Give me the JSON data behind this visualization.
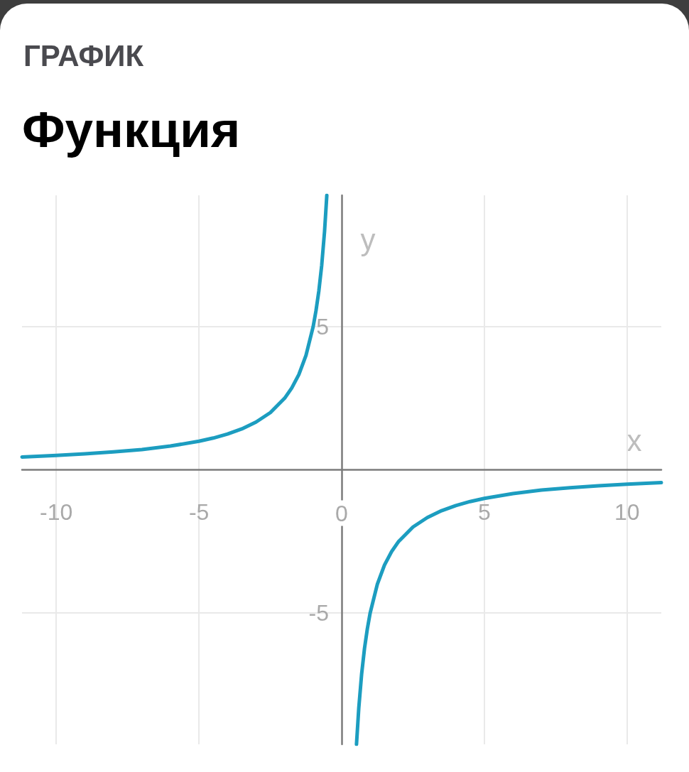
{
  "chart_data": {
    "type": "line",
    "subtitle": "ГРАФИК",
    "title": "Функция",
    "xlabel": "x",
    "ylabel": "y",
    "x": [
      -11.2,
      -10,
      -9,
      -8,
      -7,
      -6,
      -5,
      -4.5,
      -4,
      -3.5,
      -3,
      -2.5,
      -2,
      -1.75,
      -1.5,
      -1.25,
      -1,
      -0.9,
      -0.8,
      -0.7,
      -0.6,
      -0.52,
      null,
      0.52,
      0.6,
      0.7,
      0.8,
      0.9,
      1,
      1.25,
      1.5,
      1.75,
      2,
      2.5,
      3,
      3.5,
      4,
      4.5,
      5,
      6,
      7,
      8,
      9,
      10,
      11.2
    ],
    "values": [
      0.45,
      0.5,
      0.56,
      0.63,
      0.71,
      0.83,
      1,
      1.11,
      1.25,
      1.43,
      1.67,
      2,
      2.5,
      2.86,
      3.33,
      4,
      5,
      5.56,
      6.25,
      7.14,
      8.33,
      9.6,
      null,
      -9.6,
      -8.33,
      -7.14,
      -6.25,
      -5.56,
      -5,
      -4,
      -3.33,
      -2.86,
      -2.5,
      -2,
      -1.67,
      -1.43,
      -1.25,
      -1.11,
      -1,
      -0.83,
      -0.71,
      -0.63,
      -0.56,
      -0.5,
      -0.45
    ],
    "color": "#1c9dc0",
    "xlim": [
      -11.2,
      11.2
    ],
    "ylim": [
      -9.6,
      9.6
    ],
    "xticks": [
      -10,
      -5,
      0,
      5,
      10
    ],
    "yticks": [
      -5,
      5
    ],
    "grid": true,
    "marker": "none"
  }
}
